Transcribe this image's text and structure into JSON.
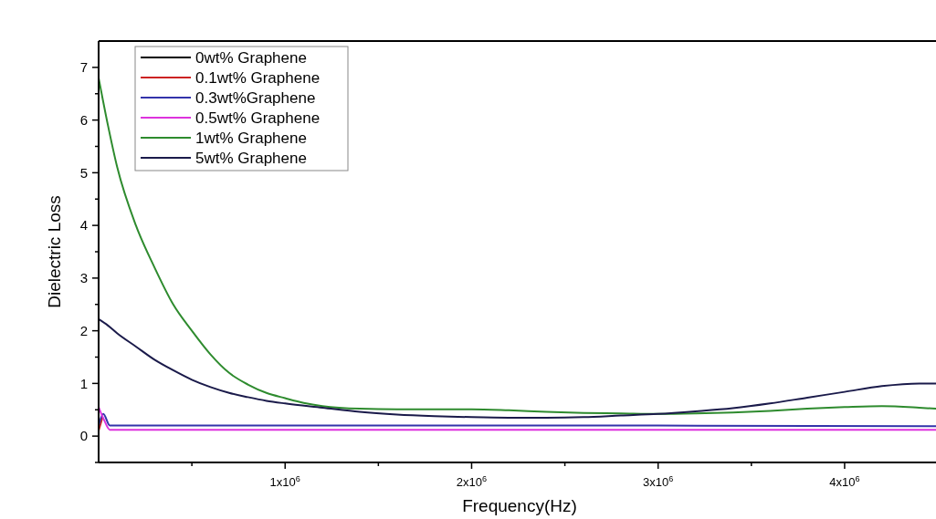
{
  "chart_data": {
    "type": "line",
    "xlabel": "Frequency(Hz)",
    "ylabel": "Dielectric Loss",
    "xlim": [
      0,
      4490000
    ],
    "ylim": [
      -0.5,
      7.5
    ],
    "xticks": [
      {
        "value": 500000,
        "label": null
      },
      {
        "value": 1000000,
        "label": "1x10$^{6}$"
      },
      {
        "value": 1500000,
        "label": null
      },
      {
        "value": 2000000,
        "label": "2x10$^{6}$"
      },
      {
        "value": 2500000,
        "label": null
      },
      {
        "value": 3000000,
        "label": "3x10$^{6}$"
      },
      {
        "value": 3500000,
        "label": null
      },
      {
        "value": 4000000,
        "label": "4x10$^{6}$"
      }
    ],
    "yticks": [
      {
        "value": -0.5,
        "label": null
      },
      0,
      {
        "value": 0.5,
        "label": null
      },
      1,
      {
        "value": 1.5,
        "label": null
      },
      2,
      {
        "value": 2.5,
        "label": null
      },
      3,
      {
        "value": 3.5,
        "label": null
      },
      4,
      {
        "value": 4.5,
        "label": null
      },
      5,
      {
        "value": 5.5,
        "label": null
      },
      6,
      {
        "value": 6.5,
        "label": null
      },
      7
    ],
    "legend": "top left",
    "grid": false,
    "marker": "none",
    "line_style": "solid",
    "series": [
      {
        "name": "0wt% Graphene",
        "color": "#000000"
      },
      {
        "name": "0.1wt% Graphene",
        "color": "#cc2222",
        "x": [
          0,
          20000
        ],
        "values": [
          0.1,
          0.35
        ]
      },
      {
        "name": "0.3wt%Graphene",
        "color": "#3333aa",
        "x": [
          0,
          25000,
          60000,
          1000000,
          2000000,
          3000000,
          4490000
        ],
        "values": [
          0.2,
          0.42,
          0.2,
          0.2,
          0.2,
          0.2,
          0.19
        ]
      },
      {
        "name": "0.5wt% Graphene",
        "color": "#dd33dd",
        "x": [
          0,
          30000,
          60000,
          1000000,
          2000000,
          3000000,
          4490000
        ],
        "values": [
          0.55,
          0.3,
          0.12,
          0.12,
          0.12,
          0.12,
          0.12
        ]
      },
      {
        "name": "1wt% Graphene",
        "color": "#2e8b2e",
        "x": [
          0,
          50000,
          100000,
          200000,
          300000,
          400000,
          500000,
          600000,
          700000,
          800000,
          900000,
          1000000,
          1100000,
          1200000,
          1400000,
          1600000,
          1800000,
          2000000,
          2200000,
          2400000,
          2600000,
          2800000,
          3000000,
          3200000,
          3400000,
          3600000,
          3800000,
          4000000,
          4200000,
          4400000,
          4490000
        ],
        "values": [
          6.8,
          5.9,
          5.1,
          4.0,
          3.2,
          2.5,
          2.0,
          1.55,
          1.2,
          0.98,
          0.82,
          0.72,
          0.63,
          0.57,
          0.52,
          0.51,
          0.51,
          0.51,
          0.49,
          0.46,
          0.44,
          0.43,
          0.42,
          0.43,
          0.45,
          0.48,
          0.52,
          0.55,
          0.57,
          0.54,
          0.52
        ]
      },
      {
        "name": "5wt% Graphene",
        "color": "#1a1a4a",
        "x": [
          0,
          50000,
          100000,
          200000,
          300000,
          400000,
          500000,
          600000,
          700000,
          800000,
          900000,
          1000000,
          1200000,
          1400000,
          1600000,
          1800000,
          2000000,
          2200000,
          2400000,
          2600000,
          2800000,
          3000000,
          3200000,
          3400000,
          3600000,
          3800000,
          4000000,
          4200000,
          4400000,
          4490000
        ],
        "values": [
          2.22,
          2.1,
          1.95,
          1.7,
          1.45,
          1.25,
          1.07,
          0.93,
          0.82,
          0.74,
          0.67,
          0.62,
          0.54,
          0.46,
          0.41,
          0.38,
          0.36,
          0.35,
          0.35,
          0.36,
          0.39,
          0.42,
          0.47,
          0.53,
          0.62,
          0.73,
          0.84,
          0.95,
          1.0,
          1.0
        ]
      }
    ]
  }
}
